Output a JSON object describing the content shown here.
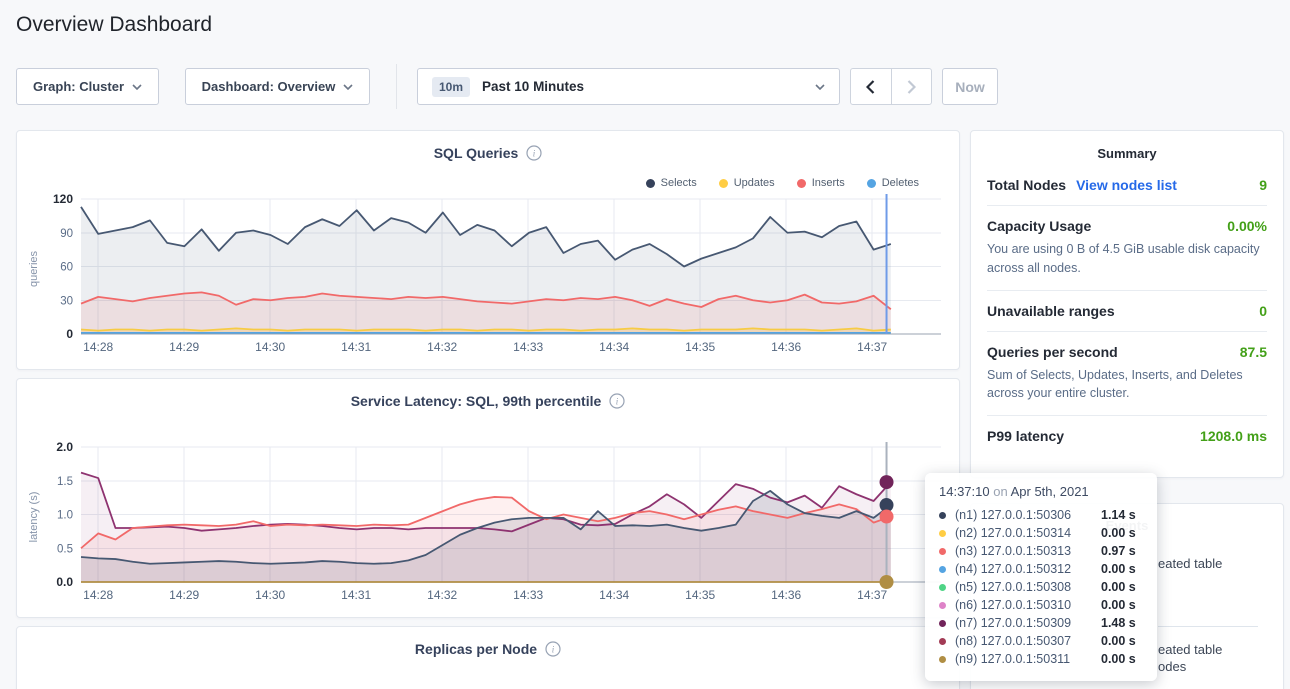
{
  "page": {
    "title": "Overview Dashboard"
  },
  "colors": {
    "green_value": "#43A018",
    "link_blue": "#2569E8",
    "sql_crosshair": "#6F9BE8",
    "latency_crosshair": "#AAB2BE"
  },
  "toolbar": {
    "graph_dropdown": {
      "label": "Graph: Cluster"
    },
    "dashboard_dropdown": {
      "label": "Dashboard: Overview"
    },
    "time_selector": {
      "badge": "10m",
      "label": "Past 10 Minutes"
    },
    "now_label": "Now"
  },
  "summary": {
    "title": "Summary",
    "rows": [
      {
        "label": "Total Nodes",
        "link": "View nodes list",
        "value": "9"
      },
      {
        "label": "Capacity Usage",
        "value": "0.00%",
        "description": "You are using 0 B of 4.5 GiB usable disk capacity across all nodes."
      },
      {
        "label": "Unavailable ranges",
        "value": "0"
      },
      {
        "label": "Queries per second",
        "value": "87.5",
        "description": "Sum of Selects, Updates, Inserts, and Deletes across your entire cluster."
      },
      {
        "label": "P99 latency",
        "value": "1208.0 ms"
      }
    ]
  },
  "tooltip": {
    "time": "14:37:10",
    "on_word": "on",
    "date": "Apr 5th, 2021",
    "rows": [
      {
        "color": "#36425B",
        "label": "(n1) 127.0.0.1:50306",
        "value": "1.14 s"
      },
      {
        "color": "#FFCD44",
        "label": "(n2) 127.0.0.1:50314",
        "value": "0.00 s"
      },
      {
        "color": "#F16969",
        "label": "(n3) 127.0.0.1:50313",
        "value": "0.97 s"
      },
      {
        "color": "#55A4E2",
        "label": "(n4) 127.0.0.1:50312",
        "value": "0.00 s"
      },
      {
        "color": "#4FD486",
        "label": "(n5) 127.0.0.1:50308",
        "value": "0.00 s"
      },
      {
        "color": "#DE83C8",
        "label": "(n6) 127.0.0.1:50310",
        "value": "0.00 s"
      },
      {
        "color": "#71245A",
        "label": "(n7) 127.0.0.1:50309",
        "value": "1.48 s"
      },
      {
        "color": "#A23B55",
        "label": "(n8) 127.0.0.1:50307",
        "value": "0.00 s"
      },
      {
        "color": "#B08E44",
        "label": "(n9) 127.0.0.1:50311",
        "value": "0.00 s"
      }
    ]
  },
  "events_panel": {
    "header": "Events",
    "fragments": [
      "eated table",
      "eated table",
      "odes"
    ]
  },
  "chart_data": [
    {
      "type": "area",
      "title": "SQL Queries",
      "ylabel": "queries",
      "ylim": [
        0,
        120
      ],
      "y_tick_vals": [
        0,
        30,
        60,
        90,
        120
      ],
      "y_tick_labels": [
        "0",
        "30",
        "60",
        "90",
        "120"
      ],
      "x_ticks": [
        "14:28",
        "14:29",
        "14:30",
        "14:31",
        "14:32",
        "14:33",
        "14:34",
        "14:35",
        "14:36",
        "14:37"
      ],
      "grid": true,
      "legend_position": "top-right",
      "crosshair": {
        "time": "14:37:10",
        "color": "#6F9BE8"
      },
      "series": [
        {
          "name": "Selects",
          "color": "#475872",
          "dot_color": "#36425B",
          "fill_opacity": 0.1,
          "values": [
            113,
            89,
            92,
            95,
            101,
            81,
            78,
            93,
            74,
            90,
            92,
            88,
            80,
            95,
            102,
            96,
            110,
            92,
            103,
            99,
            90,
            108,
            88,
            97,
            92,
            78,
            90,
            95,
            72,
            80,
            83,
            66,
            75,
            80,
            71,
            60,
            67,
            72,
            77,
            85,
            104,
            90,
            91,
            86,
            96,
            100,
            75,
            80
          ]
        },
        {
          "name": "Updates",
          "color": "#F7CB44",
          "dot_color": "#FFCD44",
          "fill_opacity": 0.25,
          "values": [
            4,
            3,
            4,
            4,
            3,
            4,
            4,
            3,
            4,
            5,
            4,
            4,
            3,
            4,
            4,
            4,
            3,
            4,
            4,
            4,
            3,
            4,
            4,
            3,
            4,
            4,
            3,
            4,
            4,
            3,
            4,
            4,
            5,
            4,
            4,
            3,
            4,
            4,
            4,
            5,
            4,
            4,
            4,
            3,
            4,
            5,
            3,
            4
          ]
        },
        {
          "name": "Inserts",
          "color": "#F16969",
          "dot_color": "#F16969",
          "fill_opacity": 0.12,
          "values": [
            27,
            33,
            31,
            29,
            32,
            34,
            36,
            37,
            34,
            26,
            31,
            30,
            32,
            33,
            36,
            34,
            33,
            32,
            31,
            33,
            32,
            33,
            31,
            29,
            28,
            27,
            29,
            31,
            30,
            32,
            31,
            33,
            30,
            25,
            31,
            27,
            24,
            31,
            34,
            30,
            28,
            30,
            35,
            28,
            27,
            29,
            34,
            22
          ]
        },
        {
          "name": "Deletes",
          "color": "#55A4E2",
          "dot_color": "#55A4E2",
          "fill_opacity": 0.0,
          "values": [
            1,
            1,
            1,
            1,
            1,
            1,
            1,
            1,
            1,
            1,
            1,
            1,
            1,
            1,
            1,
            1,
            1,
            1,
            1,
            1,
            1,
            1,
            1,
            1,
            1,
            1,
            1,
            1,
            1,
            1,
            1,
            1,
            1,
            1,
            1,
            1,
            1,
            1,
            1,
            1,
            1,
            1,
            1,
            1,
            1,
            1,
            1,
            1
          ]
        }
      ]
    },
    {
      "type": "area",
      "title": "Service Latency: SQL, 99th percentile",
      "ylabel": "latency (s)",
      "ylim": [
        0,
        2.0
      ],
      "y_tick_vals": [
        0,
        0.5,
        1.0,
        1.5,
        2.0
      ],
      "y_tick_labels": [
        "0.0",
        "0.5",
        "1.0",
        "1.5",
        "2.0"
      ],
      "x_ticks": [
        "14:28",
        "14:29",
        "14:30",
        "14:31",
        "14:32",
        "14:33",
        "14:34",
        "14:35",
        "14:36",
        "14:37"
      ],
      "grid": true,
      "crosshair": {
        "time": "14:37:10",
        "color": "#AAB2BE"
      },
      "end_dots": [
        {
          "value": 1.48,
          "color": "#71245A"
        },
        {
          "value": 1.14,
          "color": "#36425B"
        },
        {
          "value": 0.97,
          "color": "#F16969"
        },
        {
          "value": 0.0,
          "color": "#B08E44"
        }
      ],
      "series": [
        {
          "name": "(n7) 127.0.0.1:50309",
          "color": "#8E3370",
          "fill_opacity": 0.08,
          "values": [
            1.62,
            1.54,
            0.8,
            0.8,
            0.81,
            0.82,
            0.8,
            0.76,
            0.78,
            0.8,
            0.83,
            0.85,
            0.86,
            0.85,
            0.83,
            0.8,
            0.78,
            0.8,
            0.8,
            0.78,
            0.8,
            0.8,
            0.8,
            0.8,
            0.78,
            0.75,
            0.85,
            0.95,
            0.93,
            0.85,
            0.84,
            0.86,
            1.0,
            1.12,
            1.3,
            1.15,
            0.95,
            1.2,
            1.45,
            1.38,
            1.25,
            1.18,
            1.28,
            1.1,
            1.42,
            1.3,
            1.2,
            1.48
          ]
        },
        {
          "name": "(n3) 127.0.0.1:50313",
          "color": "#F16969",
          "fill_opacity": 0.1,
          "values": [
            0.5,
            0.72,
            0.63,
            0.8,
            0.82,
            0.84,
            0.85,
            0.84,
            0.83,
            0.85,
            0.9,
            0.83,
            0.85,
            0.84,
            0.85,
            0.84,
            0.83,
            0.85,
            0.84,
            0.85,
            0.95,
            1.05,
            1.15,
            1.22,
            1.26,
            1.25,
            1.05,
            0.93,
            1.0,
            0.95,
            0.9,
            0.95,
            1.02,
            1.05,
            1.0,
            0.93,
            1.0,
            1.07,
            1.12,
            1.05,
            1.0,
            0.95,
            1.02,
            1.08,
            1.15,
            1.08,
            0.88,
            0.97
          ]
        },
        {
          "name": "(n1) 127.0.0.1:50306",
          "color": "#475872",
          "fill_opacity": 0.15,
          "values": [
            0.37,
            0.35,
            0.34,
            0.3,
            0.27,
            0.28,
            0.29,
            0.3,
            0.31,
            0.3,
            0.28,
            0.27,
            0.28,
            0.29,
            0.31,
            0.3,
            0.28,
            0.27,
            0.28,
            0.32,
            0.4,
            0.55,
            0.7,
            0.8,
            0.88,
            0.93,
            0.95,
            0.95,
            0.95,
            0.78,
            1.05,
            0.83,
            0.84,
            0.83,
            0.85,
            0.8,
            0.76,
            0.8,
            0.85,
            1.2,
            1.35,
            1.15,
            1.02,
            0.98,
            0.95,
            1.05,
            0.95,
            1.14
          ]
        },
        {
          "name": "(n9) 127.0.0.1:50311",
          "color": "#B08E44",
          "fill_opacity": 0.0,
          "values": [
            0,
            0,
            0,
            0,
            0,
            0,
            0,
            0,
            0,
            0,
            0,
            0,
            0,
            0,
            0,
            0,
            0,
            0,
            0,
            0,
            0,
            0,
            0,
            0,
            0,
            0,
            0,
            0,
            0,
            0,
            0,
            0,
            0,
            0,
            0,
            0,
            0,
            0,
            0,
            0,
            0,
            0,
            0,
            0,
            0,
            0,
            0,
            0
          ]
        }
      ]
    },
    {
      "type": "line",
      "title": "Replicas per Node",
      "series": []
    }
  ]
}
